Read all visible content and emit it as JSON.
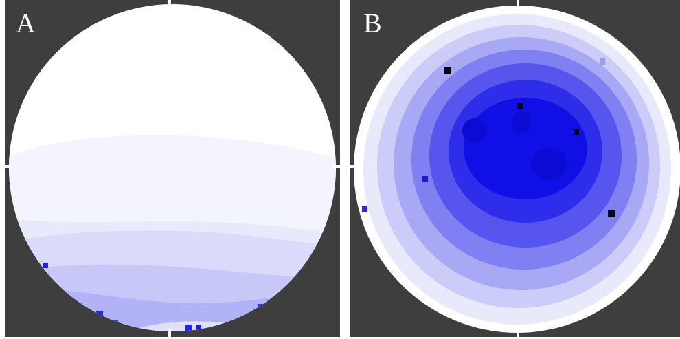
{
  "panels": [
    {
      "label": "A",
      "colors": {
        "background": "#3e3e3e",
        "tints": [
          "#ffffff",
          "#f4f4fe",
          "#e9e9fc",
          "#dadafb",
          "#c8c8f8",
          "#b2b2f6",
          "#2323ee"
        ]
      }
    },
    {
      "label": "B",
      "colors": {
        "background": "#3e3e3e",
        "tints": [
          "#ffffff",
          "#e9e9fc",
          "#ccccf9",
          "#a8a8f5",
          "#8080f2",
          "#5656ee",
          "#2e2eea",
          "#1010e6",
          "#0b0bd4",
          "#000010"
        ]
      }
    }
  ]
}
